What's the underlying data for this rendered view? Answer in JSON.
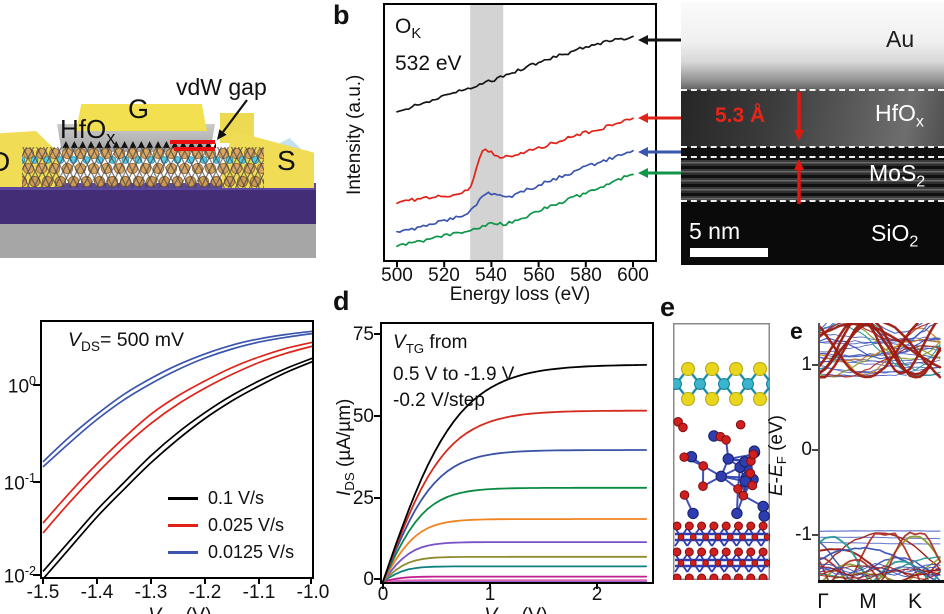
{
  "panels": {
    "a": {
      "gate": "G",
      "dielectric_main": "HfO",
      "dielectric_sub": "x",
      "vdw_gap": "vdW gap",
      "source": "S",
      "drain": "D"
    },
    "b": {
      "label": "b",
      "edge_main": "O",
      "edge_sub": "K",
      "edge_energy": "532 eV",
      "ylabel": "Intensity (a.u.)",
      "xlabel": "Energy loss (eV)",
      "xticks": [
        "500",
        "520",
        "540",
        "560",
        "580",
        "600"
      ]
    },
    "tem": {
      "au": "Au",
      "hfo_main": "HfO",
      "hfo_sub": "x",
      "mos_main": "MoS",
      "mos_sub": "2",
      "sio_main": "SiO",
      "sio_sub": "2",
      "thickness": "5.3 Å",
      "scalebar": "5 nm"
    },
    "c": {
      "ann_v": "V",
      "ann_sub": "DS",
      "ann_rest": "= 500 mV",
      "ytick_base": "10",
      "ytick_exps": [
        "0",
        "-1",
        "-2"
      ],
      "xticks": [
        "-1.5",
        "-1.4",
        "-1.3",
        "-1.2",
        "-1.1",
        "-1.0"
      ],
      "xlabel_v": "V",
      "xlabel_sub": "TG",
      "xlabel_rest": " (V)",
      "legend": [
        {
          "label": "0.1 V/s",
          "color": "#000000"
        },
        {
          "label": "0.025 V/s",
          "color": "#e02318"
        },
        {
          "label": "0.0125 V/s",
          "color": "#3a55ae"
        }
      ]
    },
    "d": {
      "label": "d",
      "ann1_v": "V",
      "ann1_sub": "TG",
      "ann1_rest": " from",
      "ann2": "0.5 V to -1.9 V",
      "ann3": "-0.2 V/step",
      "ylabel_i": "I",
      "ylabel_sub": "DS",
      "ylabel_rest": " (µA/µm)",
      "yticks": [
        "75",
        "50",
        "25",
        "0"
      ],
      "xticks": [
        "0",
        "1",
        "2"
      ],
      "xlabel_v": "V",
      "xlabel_sub": "DS",
      "xlabel_rest": " (V)"
    },
    "e_model": {
      "label": "e"
    },
    "band": {
      "label": "e",
      "ylabel_e1": "E",
      "ylabel_dash": "-",
      "ylabel_e2": "E",
      "ylabel_sub": "F",
      "ylabel_rest": " (eV)",
      "yticks": [
        "1",
        "0",
        "-1"
      ],
      "xticks": [
        "Γ",
        "M",
        "K"
      ]
    }
  },
  "chart_data": [
    {
      "id": "eels_spectra",
      "type": "line",
      "title": "O K-edge EELS, 532 eV",
      "xlabel": "Energy loss (eV)",
      "ylabel": "Intensity (a.u.)",
      "xlim": [
        500,
        600
      ],
      "xticks": [
        500,
        520,
        540,
        560,
        580,
        600
      ],
      "shaded_band_eV": [
        531,
        545
      ],
      "series": [
        {
          "name": "Au layer (black arrow)",
          "color": "#151515",
          "points": [
            [
              500,
              0.58
            ],
            [
              510,
              0.61
            ],
            [
              520,
              0.64
            ],
            [
              530,
              0.67
            ],
            [
              540,
              0.7
            ],
            [
              550,
              0.735
            ],
            [
              560,
              0.77
            ],
            [
              570,
              0.8
            ],
            [
              580,
              0.83
            ],
            [
              590,
              0.853
            ],
            [
              600,
              0.87
            ]
          ]
        },
        {
          "name": "HfOx layer (red arrow)",
          "color": "#e02318",
          "points": [
            [
              500,
              0.232
            ],
            [
              510,
              0.243
            ],
            [
              520,
              0.255
            ],
            [
              528,
              0.266
            ],
            [
              531,
              0.286
            ],
            [
              534,
              0.375
            ],
            [
              537,
              0.44
            ],
            [
              540,
              0.425
            ],
            [
              543,
              0.405
            ],
            [
              547,
              0.405
            ],
            [
              552,
              0.417
            ],
            [
              560,
              0.44
            ],
            [
              570,
              0.47
            ],
            [
              580,
              0.5
            ],
            [
              590,
              0.525
            ],
            [
              600,
              0.552
            ]
          ]
        },
        {
          "name": "HfOx/MoS2 interface (blue arrow)",
          "color": "#3a55ae",
          "points": [
            [
              500,
              0.116
            ],
            [
              510,
              0.135
            ],
            [
              520,
              0.158
            ],
            [
              528,
              0.181
            ],
            [
              532,
              0.201
            ],
            [
              535,
              0.239
            ],
            [
              538,
              0.263
            ],
            [
              541,
              0.266
            ],
            [
              544,
              0.259
            ],
            [
              548,
              0.251
            ],
            [
              552,
              0.266
            ],
            [
              560,
              0.297
            ],
            [
              570,
              0.332
            ],
            [
              580,
              0.367
            ],
            [
              590,
              0.398
            ],
            [
              600,
              0.425
            ]
          ]
        },
        {
          "name": "MoS2 layer (green arrow)",
          "color": "#0f9648",
          "points": [
            [
              500,
              0.066
            ],
            [
              510,
              0.081
            ],
            [
              520,
              0.1
            ],
            [
              530,
              0.12
            ],
            [
              535,
              0.135
            ],
            [
              540,
              0.147
            ],
            [
              546,
              0.147
            ],
            [
              552,
              0.166
            ],
            [
              560,
              0.197
            ],
            [
              570,
              0.232
            ],
            [
              580,
              0.266
            ],
            [
              590,
              0.305
            ],
            [
              600,
              0.34
            ]
          ]
        }
      ]
    },
    {
      "id": "transfer_curves",
      "type": "line",
      "log_y": true,
      "xlabel": "VTG (V)",
      "annotation": "VDS = 500 mV",
      "x": [
        -1.5,
        -1.45,
        -1.4,
        -1.35,
        -1.3,
        -1.25,
        -1.2,
        -1.15,
        -1.1,
        -1.05,
        -1.0
      ],
      "xlim": [
        -1.5,
        -1.0
      ],
      "ylim": [
        0.01,
        4.7
      ],
      "series": [
        {
          "name": "0.1 V/s",
          "color": "#000000",
          "sweep_fwd": [
            0.01,
            0.021,
            0.044,
            0.085,
            0.16,
            0.28,
            0.46,
            0.7,
            1.0,
            1.38,
            1.8
          ],
          "sweep_rev": [
            0.012,
            0.025,
            0.052,
            0.1,
            0.19,
            0.33,
            0.53,
            0.8,
            1.13,
            1.52,
            1.95
          ]
        },
        {
          "name": "0.025 V/s",
          "color": "#e02318",
          "sweep_fwd": [
            0.03,
            0.063,
            0.125,
            0.235,
            0.41,
            0.65,
            0.95,
            1.32,
            1.75,
            2.18,
            2.6
          ],
          "sweep_rev": [
            0.038,
            0.079,
            0.156,
            0.29,
            0.51,
            0.79,
            1.13,
            1.55,
            2.0,
            2.45,
            2.85
          ]
        },
        {
          "name": "0.0125 V/s",
          "color": "#3a55ae",
          "sweep_fwd": [
            0.145,
            0.26,
            0.45,
            0.72,
            1.06,
            1.48,
            1.95,
            2.42,
            2.85,
            3.2,
            3.5
          ],
          "sweep_rev": [
            0.164,
            0.3,
            0.51,
            0.82,
            1.2,
            1.66,
            2.15,
            2.65,
            3.08,
            3.42,
            3.7
          ]
        }
      ]
    },
    {
      "id": "output_curves",
      "type": "line",
      "xlabel": "VDS (V)",
      "ylabel": "IDS (µA/µm)",
      "xlim": [
        0,
        2.52
      ],
      "ylim": [
        0,
        78
      ],
      "yticks": [
        0,
        25,
        50,
        75
      ],
      "annotation": "VTG from 0.5 V to -1.9 V, -0.2 V/step",
      "gate_voltages_V": [
        0.5,
        0.3,
        0.1,
        -0.1,
        -0.3,
        -0.5,
        -0.7,
        -0.9,
        -1.1,
        -1.3,
        -1.5,
        -1.7,
        -1.9
      ],
      "saturation_current_uA_um": [
        66,
        52,
        40,
        28.5,
        19,
        12,
        7.5,
        4.6,
        1.5,
        0.4,
        0.12,
        0.04,
        0
      ],
      "colors": [
        "#000000",
        "#d52b1e",
        "#3a53a4",
        "#0b8a44",
        "#f08421",
        "#7a52c7",
        "#8f8c2e",
        "#0f8080",
        "#c11e8f",
        "#e06ab8",
        "#8f62c8",
        "#c05060",
        "#d0a0a0"
      ]
    },
    {
      "id": "band_structure",
      "type": "line",
      "ylabel": "E-EF (eV)",
      "ylim": [
        -1.55,
        1.55
      ],
      "yticks": [
        1,
        0,
        -1
      ],
      "kpath": [
        "Γ",
        "M",
        "K"
      ],
      "conduction_band_min_eV": 0.86,
      "valence_band_max_eV": -0.95,
      "band_gap_eV": 1.8
    }
  ]
}
